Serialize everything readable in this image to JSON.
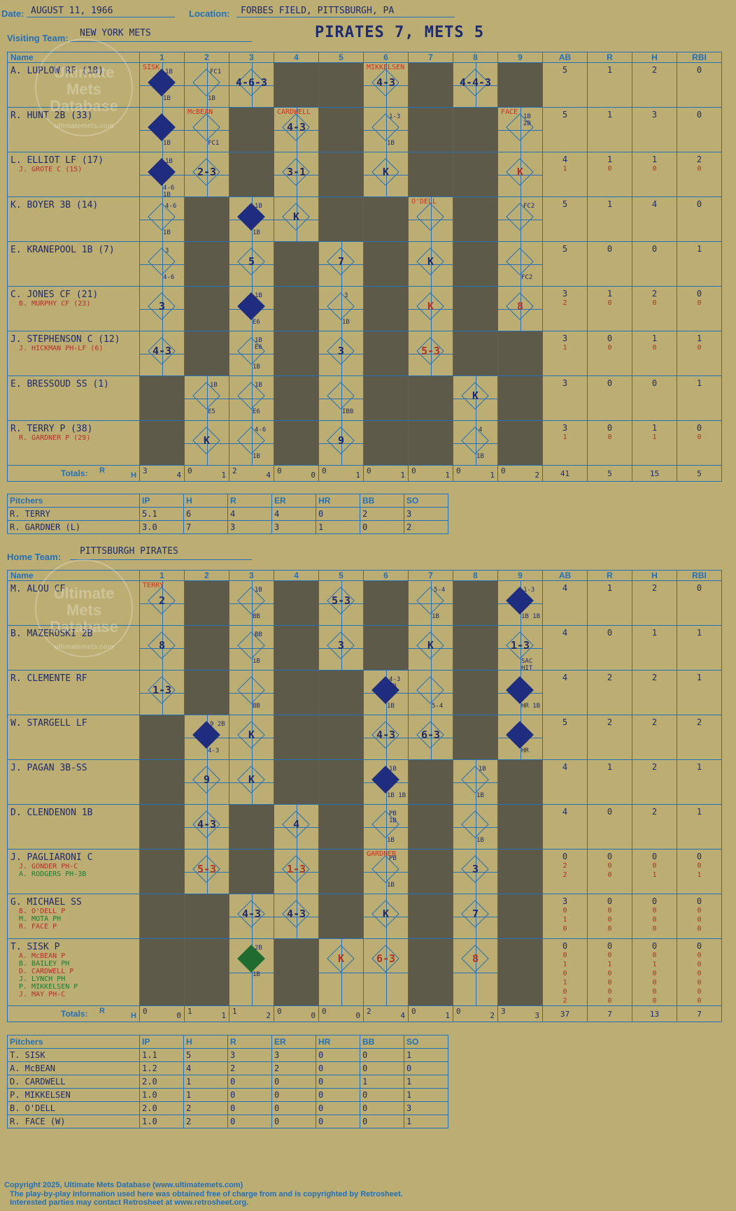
{
  "header": {
    "date_label": "Date:",
    "date": "AUGUST 11, 1966",
    "location_label": "Location:",
    "location": "FORBES FIELD, PITTSBURGH, PA",
    "visiting_label": "Visiting Team:",
    "visiting_team": "NEW YORK METS",
    "result": "PIRATES 7, METS 5",
    "home_label": "Home Team:",
    "home_team": "PITTSBURGH PIRATES"
  },
  "columns": {
    "name": "Name",
    "innings": [
      "1",
      "2",
      "3",
      "4",
      "5",
      "6",
      "7",
      "8",
      "9"
    ],
    "stats": [
      "AB",
      "R",
      "H",
      "RBI"
    ],
    "totals": "Totals:",
    "r": "R",
    "h": "H"
  },
  "pitcher_columns": [
    "Pitchers",
    "IP",
    "H",
    "R",
    "ER",
    "HR",
    "BB",
    "SO"
  ],
  "watermark": {
    "l1": "Ultimate",
    "l2": "Mets",
    "l3": "Database",
    "l4": "ultimatemets.com"
  },
  "visitors": {
    "batters": [
      {
        "name": "A. LUPLOW RF (18)",
        "subs": [],
        "ab": [
          "5"
        ],
        "r": [
          "1"
        ],
        "h": [
          "2"
        ],
        "rbi": [
          "0"
        ]
      },
      {
        "name": "R. HUNT 2B (33)",
        "subs": [],
        "ab": [
          "5"
        ],
        "r": [
          "1"
        ],
        "h": [
          "3"
        ],
        "rbi": [
          "0"
        ]
      },
      {
        "name": "L. ELLIOT LF (17)",
        "subs": [
          "J. GROTE C (15)"
        ],
        "ab": [
          "4",
          "1"
        ],
        "r": [
          "1",
          "0"
        ],
        "h": [
          "1",
          "0"
        ],
        "rbi": [
          "2",
          "0"
        ]
      },
      {
        "name": "K. BOYER 3B (14)",
        "subs": [],
        "ab": [
          "5"
        ],
        "r": [
          "1"
        ],
        "h": [
          "4"
        ],
        "rbi": [
          "0"
        ]
      },
      {
        "name": "E. KRANEPOOL 1B (7)",
        "subs": [],
        "ab": [
          "5"
        ],
        "r": [
          "0"
        ],
        "h": [
          "0"
        ],
        "rbi": [
          "1"
        ]
      },
      {
        "name": "C. JONES CF (21)",
        "subs": [
          "B. MURPHY CF (23)"
        ],
        "ab": [
          "3",
          "2"
        ],
        "r": [
          "1",
          "0"
        ],
        "h": [
          "2",
          "0"
        ],
        "rbi": [
          "0",
          "0"
        ]
      },
      {
        "name": "J. STEPHENSON C (12)",
        "subs": [
          "J. HICKMAN PH-LF (6)"
        ],
        "ab": [
          "3",
          "1"
        ],
        "r": [
          "0",
          "0"
        ],
        "h": [
          "1",
          "0"
        ],
        "rbi": [
          "1",
          "0"
        ]
      },
      {
        "name": "E. BRESSOUD SS (1)",
        "subs": [],
        "ab": [
          "3"
        ],
        "r": [
          "0"
        ],
        "h": [
          "0"
        ],
        "rbi": [
          "1"
        ]
      },
      {
        "name": "R. TERRY P (38)",
        "subs": [
          "R. GARDNER P (29)"
        ],
        "ab": [
          "3",
          "1"
        ],
        "r": [
          "0",
          "0"
        ],
        "h": [
          "1",
          "1"
        ],
        "rbi": [
          "0",
          "0"
        ]
      }
    ],
    "grid": [
      [
        {
          "t": "",
          "s": 1,
          "p": "SISK",
          "a": "1B",
          "b": "1B",
          "c": "1B"
        },
        {
          "t": "",
          "a": "FC1",
          "b": "1B"
        },
        {
          "t": "4-6-3"
        },
        {
          "x": 1
        },
        {
          "x": 1
        },
        {
          "t": "4-3",
          "p": "MIKKELSEN"
        },
        {
          "x": 1
        },
        {
          "t": "4-4-3"
        },
        {
          "x": 1
        }
      ],
      [
        {
          "t": "",
          "s": 1,
          "b": "1B"
        },
        {
          "t": "",
          "p": "McBEAN",
          "b": "FC1"
        },
        {
          "x": 1
        },
        {
          "t": "4-3",
          "p": "CARDWELL"
        },
        {
          "x": 1
        },
        {
          "t": "",
          "a": "1-3",
          "b": "1B"
        },
        {
          "x": 1
        },
        {
          "x": 1
        },
        {
          "t": "",
          "p": "FACE",
          "a": "1B 2B"
        }
      ],
      [
        {
          "t": "",
          "s": 1,
          "a": "1B",
          "b": "4-6 1B"
        },
        {
          "t": "2-3"
        },
        {
          "x": 1
        },
        {
          "t": "3-1"
        },
        {
          "x": 1
        },
        {
          "t": "K"
        },
        {
          "x": 1
        },
        {
          "x": 1
        },
        {
          "t": "K",
          "r": 1
        }
      ],
      [
        {
          "t": "",
          "a": "4-6",
          "b": "1B"
        },
        {
          "x": 1
        },
        {
          "t": "",
          "s": 1,
          "a": "1B",
          "b": "1B"
        },
        {
          "t": "K"
        },
        {
          "x": 1
        },
        {
          "x": 1
        },
        {
          "t": "",
          "p": "O'DELL"
        },
        {
          "x": 1
        },
        {
          "t": "",
          "a": "FC2"
        }
      ],
      [
        {
          "t": "",
          "a": "3",
          "b": "4-6"
        },
        {
          "x": 1
        },
        {
          "t": "5"
        },
        {
          "x": 1
        },
        {
          "t": "7"
        },
        {
          "x": 1
        },
        {
          "t": "K"
        },
        {
          "x": 1
        },
        {
          "t": "",
          "b": "FC2"
        }
      ],
      [
        {
          "t": "3"
        },
        {
          "x": 1
        },
        {
          "t": "",
          "s": 1,
          "a": "1B",
          "b": "E6"
        },
        {
          "x": 1
        },
        {
          "t": "",
          "a": "3",
          "b": "1B"
        },
        {
          "x": 1
        },
        {
          "t": "K",
          "r": 1
        },
        {
          "x": 1
        },
        {
          "t": "8",
          "r": 1
        }
      ],
      [
        {
          "t": "4-3"
        },
        {
          "x": 1
        },
        {
          "t": "",
          "a": "1B E6",
          "b": "1B"
        },
        {
          "x": 1
        },
        {
          "t": "3"
        },
        {
          "x": 1
        },
        {
          "t": "5-3",
          "r": 1
        },
        {
          "x": 1
        },
        {
          "x": 1
        }
      ],
      [
        {
          "x": 1
        },
        {
          "t": "",
          "a": "1B",
          "b": "E5"
        },
        {
          "t": "",
          "a": "1B",
          "b": "E6"
        },
        {
          "x": 1
        },
        {
          "t": "",
          "b": "IBB"
        },
        {
          "x": 1
        },
        {
          "x": 1
        },
        {
          "t": "K"
        },
        {
          "x": 1
        }
      ],
      [
        {
          "x": 1
        },
        {
          "t": "K"
        },
        {
          "t": "",
          "a": "4-6",
          "b": "1B"
        },
        {
          "x": 1
        },
        {
          "t": "9"
        },
        {
          "x": 1
        },
        {
          "x": 1
        },
        {
          "t": "",
          "a": "4",
          "b": "1B"
        },
        {
          "x": 1
        }
      ]
    ],
    "totals": [
      [
        "3",
        "4"
      ],
      [
        "0",
        "1"
      ],
      [
        "2",
        "4"
      ],
      [
        "0",
        "0"
      ],
      [
        "0",
        "1"
      ],
      [
        "0",
        "1"
      ],
      [
        "0",
        "1"
      ],
      [
        "0",
        "1"
      ],
      [
        "0",
        "2"
      ]
    ],
    "totals_stats": [
      "41",
      "5",
      "15",
      "5"
    ],
    "pitchers": [
      [
        "R. TERRY",
        "5.1",
        "6",
        "4",
        "4",
        "0",
        "2",
        "3"
      ],
      [
        "R. GARDNER (L)",
        "3.0",
        "7",
        "3",
        "3",
        "1",
        "0",
        "2"
      ]
    ]
  },
  "home": {
    "batters": [
      {
        "name": "M. ALOU CF",
        "subs": [],
        "ab": [
          "4"
        ],
        "r": [
          "1"
        ],
        "h": [
          "2"
        ],
        "rbi": [
          "0"
        ]
      },
      {
        "name": "B. MAZEROSKI 2B",
        "subs": [],
        "ab": [
          "4"
        ],
        "r": [
          "0"
        ],
        "h": [
          "1"
        ],
        "rbi": [
          "1"
        ]
      },
      {
        "name": "R. CLEMENTE RF",
        "subs": [],
        "ab": [
          "4"
        ],
        "r": [
          "2"
        ],
        "h": [
          "2"
        ],
        "rbi": [
          "1"
        ]
      },
      {
        "name": "W. STARGELL LF",
        "subs": [],
        "ab": [
          "5"
        ],
        "r": [
          "2"
        ],
        "h": [
          "2"
        ],
        "rbi": [
          "2"
        ]
      },
      {
        "name": "J. PAGAN 3B-SS",
        "subs": [],
        "ab": [
          "4"
        ],
        "r": [
          "1"
        ],
        "h": [
          "2"
        ],
        "rbi": [
          "1"
        ]
      },
      {
        "name": "D. CLENDENON 1B",
        "subs": [],
        "ab": [
          "4"
        ],
        "r": [
          "0"
        ],
        "h": [
          "2"
        ],
        "rbi": [
          "1"
        ]
      },
      {
        "name": "J. PAGLIARONI C",
        "subs": [
          "J. GONDER PH-C",
          "A. RODGERS PH-3B"
        ],
        "ab": [
          "0",
          "2",
          "2"
        ],
        "r": [
          "0",
          "0",
          "0"
        ],
        "h": [
          "0",
          "0",
          "1"
        ],
        "rbi": [
          "0",
          "0",
          "1"
        ]
      },
      {
        "name": "G. MICHAEL SS",
        "subs": [
          "B. O'DELL P",
          "M. MOTA PH",
          "R. FACE P"
        ],
        "ab": [
          "3",
          "0",
          "1",
          "0"
        ],
        "r": [
          "0",
          "0",
          "0",
          "0"
        ],
        "h": [
          "0",
          "0",
          "0",
          "0"
        ],
        "rbi": [
          "0",
          "0",
          "0",
          "0"
        ]
      },
      {
        "name": "T. SISK P",
        "subs": [
          "A. McBEAN P",
          "B. BAILEY PH",
          "D. CARDWELL P",
          "J. LYNCH PH",
          "P. MIKKELSEN P",
          "J. MAY PH-C"
        ],
        "ab": [
          "0",
          "0",
          "1",
          "0",
          "1",
          "0",
          "2"
        ],
        "r": [
          "0",
          "0",
          "1",
          "0",
          "0",
          "0",
          "0"
        ],
        "h": [
          "0",
          "0",
          "1",
          "0",
          "0",
          "0",
          "0"
        ],
        "rbi": [
          "0",
          "0",
          "0",
          "0",
          "0",
          "0",
          "0"
        ]
      }
    ],
    "grid": [
      [
        {
          "t": "2",
          "p": "TERRY"
        },
        {
          "x": 1
        },
        {
          "t": "",
          "a": "1B",
          "b": "BB"
        },
        {
          "x": 1
        },
        {
          "t": "5-3"
        },
        {
          "x": 1
        },
        {
          "t": "",
          "a": "5-4",
          "b": "1B"
        },
        {
          "x": 1
        },
        {
          "t": "",
          "s": 1,
          "a": "1-3",
          "b": "1B 1B"
        }
      ],
      [
        {
          "t": "8"
        },
        {
          "x": 1
        },
        {
          "t": "",
          "a": "BB",
          "b": "1B"
        },
        {
          "x": 1
        },
        {
          "t": "3"
        },
        {
          "x": 1
        },
        {
          "t": "K"
        },
        {
          "x": 1
        },
        {
          "t": "1-3",
          "b": "SAC HIT"
        }
      ],
      [
        {
          "t": "1-3"
        },
        {
          "x": 1
        },
        {
          "t": "",
          "b": "BB"
        },
        {
          "x": 1
        },
        {
          "x": 1
        },
        {
          "t": "",
          "s": 1,
          "a": "4-3 2B",
          "b": "1B"
        },
        {
          "t": "",
          "b": "5-4"
        },
        {
          "x": 1
        },
        {
          "t": "",
          "s": 1,
          "b": "HR 1B"
        }
      ],
      [
        {
          "x": 1
        },
        {
          "t": "",
          "s": 1,
          "a": "9 2B",
          "b": "4-3"
        },
        {
          "t": "K"
        },
        {
          "x": 1
        },
        {
          "x": 1
        },
        {
          "t": "4-3"
        },
        {
          "t": "6-3"
        },
        {
          "x": 1
        },
        {
          "t": "",
          "s": 1,
          "b": "HR"
        }
      ],
      [
        {
          "x": 1
        },
        {
          "t": "9"
        },
        {
          "t": "K"
        },
        {
          "x": 1
        },
        {
          "x": 1
        },
        {
          "t": "",
          "s": 1,
          "a": "1B",
          "b": "1B 1B"
        },
        {
          "x": 1
        },
        {
          "t": "",
          "a": "1B",
          "b": "1B"
        },
        {
          "x": 1
        }
      ],
      [
        {
          "x": 1
        },
        {
          "t": "4-3"
        },
        {
          "x": 1
        },
        {
          "t": "4"
        },
        {
          "x": 1
        },
        {
          "t": "",
          "a": "PB 1B",
          "b": "1B"
        },
        {
          "x": 1
        },
        {
          "t": "",
          "b": "1B"
        },
        {
          "x": 1
        }
      ],
      [
        {
          "x": 1
        },
        {
          "t": "5-3",
          "r": 1
        },
        {
          "x": 1
        },
        {
          "t": "1-3",
          "r": 1
        },
        {
          "x": 1
        },
        {
          "t": "",
          "p": "GARDNER",
          "a": "PB",
          "b": "1B"
        },
        {
          "x": 1
        },
        {
          "t": "3"
        },
        {
          "x": 1
        }
      ],
      [
        {
          "x": 1
        },
        {
          "x": 1
        },
        {
          "t": "4-3"
        },
        {
          "t": "4-3"
        },
        {
          "x": 1
        },
        {
          "t": "K"
        },
        {
          "x": 1
        },
        {
          "t": "7"
        },
        {
          "x": 1
        }
      ],
      [
        {
          "x": 1
        },
        {
          "x": 1
        },
        {
          "t": "",
          "s": 2,
          "a": "2B",
          "b": "1B"
        },
        {
          "x": 1
        },
        {
          "t": "K",
          "r": 1
        },
        {
          "t": "6-3",
          "r": 1
        },
        {
          "x": 1
        },
        {
          "t": "8",
          "r": 1
        },
        {
          "x": 1
        }
      ]
    ],
    "totals": [
      [
        "0",
        "0"
      ],
      [
        "1",
        "1"
      ],
      [
        "1",
        "2"
      ],
      [
        "0",
        "0"
      ],
      [
        "0",
        "0"
      ],
      [
        "2",
        "4"
      ],
      [
        "0",
        "1"
      ],
      [
        "0",
        "2"
      ],
      [
        "3",
        "3"
      ]
    ],
    "totals_stats": [
      "37",
      "7",
      "13",
      "7"
    ],
    "pitchers": [
      [
        "T. SISK",
        "1.1",
        "5",
        "3",
        "3",
        "0",
        "0",
        "1"
      ],
      [
        "A. McBEAN",
        "1.2",
        "4",
        "2",
        "2",
        "0",
        "0",
        "0"
      ],
      [
        "D. CARDWELL",
        "2.0",
        "1",
        "0",
        "0",
        "0",
        "1",
        "1"
      ],
      [
        "P. MIKKELSEN",
        "1.0",
        "1",
        "0",
        "0",
        "0",
        "0",
        "1"
      ],
      [
        "B. O'DELL",
        "2.0",
        "2",
        "0",
        "0",
        "0",
        "0",
        "3"
      ],
      [
        "R. FACE (W)",
        "1.0",
        "2",
        "0",
        "0",
        "0",
        "0",
        "1"
      ]
    ]
  },
  "footer": {
    "l1": "Copyright 2025, Ultimate Mets Database (www.ultimatemets.com)",
    "l2": "The play-by-play information used here was obtained free of charge from and is copyrighted by Retrosheet.",
    "l3": "Interested parties may contact Retrosheet at www.retrosheet.org."
  }
}
